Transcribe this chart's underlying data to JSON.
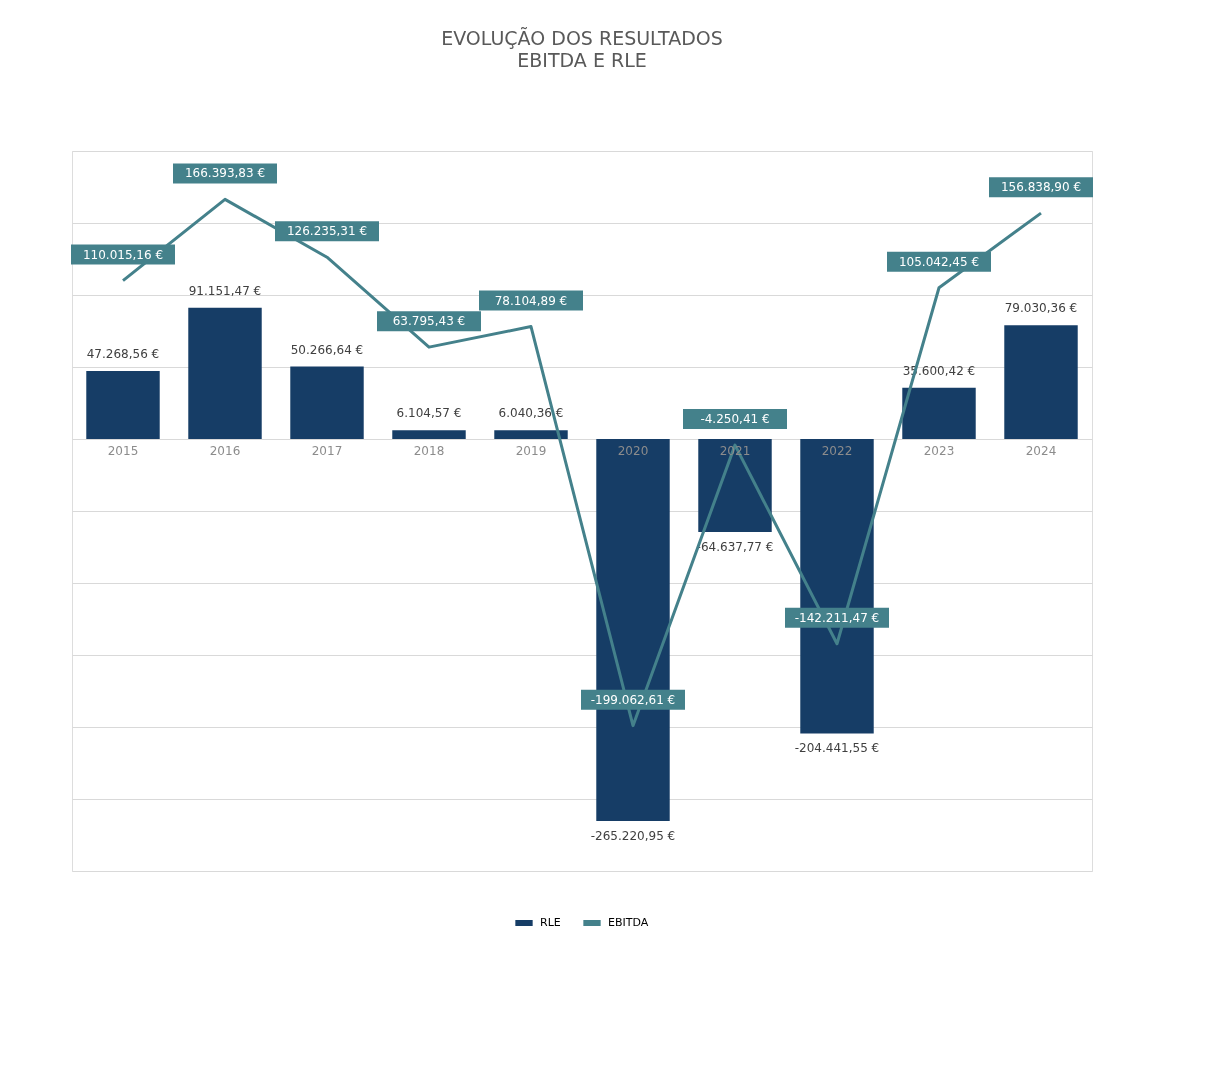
{
  "chart_data": {
    "type": "bar",
    "title": "EVOLUÇÃO DOS RESULTADOS",
    "subtitle": "EBITDA E RLE",
    "categories": [
      "2015",
      "2016",
      "2017",
      "2018",
      "2019",
      "2020",
      "2021",
      "2022",
      "2023",
      "2024"
    ],
    "series": [
      {
        "name": "RLE",
        "color": "#163d66",
        "values": [
          47268.56,
          91151.47,
          50266.64,
          6104.57,
          6040.36,
          -265220.95,
          -64637.77,
          -204441.55,
          35600.42,
          79030.36
        ],
        "value_labels": [
          "47.268,56 €",
          "91.151,47 €",
          "50.266,64 €",
          "6.104,57 €",
          "6.040,36 €",
          "-265.220,95 €",
          "-64.637,77 €",
          "-204.441,55 €",
          "35.600,42 €",
          "79.030,36 €"
        ]
      },
      {
        "name": "EBITDA",
        "type": "line",
        "color": "#44818b",
        "values": [
          110015.16,
          166393.83,
          126235.31,
          63795.43,
          78104.89,
          -199062.61,
          -4250.41,
          -142211.47,
          105042.45,
          156838.9
        ],
        "value_labels": [
          "110.015,16 €",
          "166.393,83 €",
          "126.235,31 €",
          "63.795,43 €",
          "78.104,89 €",
          "-199.062,61 €",
          "-4.250,41 €",
          "-142.211,47 €",
          "105.042,45 €",
          "156.838,90 €"
        ]
      }
    ],
    "ylim": [
      -300000,
      200000
    ],
    "yticks": [
      {
        "value": -300000,
        "label": null
      },
      {
        "value": -250000,
        "label": null
      },
      {
        "value": -200000,
        "label": null
      },
      {
        "value": -150000,
        "label": null
      },
      {
        "value": -100000,
        "label": null
      },
      {
        "value": -50000,
        "label": null
      },
      {
        "value": 0,
        "label": null
      },
      {
        "value": 50000,
        "label": null
      },
      {
        "value": 100000,
        "label": null
      },
      {
        "value": 150000,
        "label": null
      },
      {
        "value": 200000,
        "label": null
      }
    ],
    "grid": "y",
    "legend": "bottom",
    "tick_labels": "x",
    "marker": "none",
    "line_style": "solid"
  }
}
